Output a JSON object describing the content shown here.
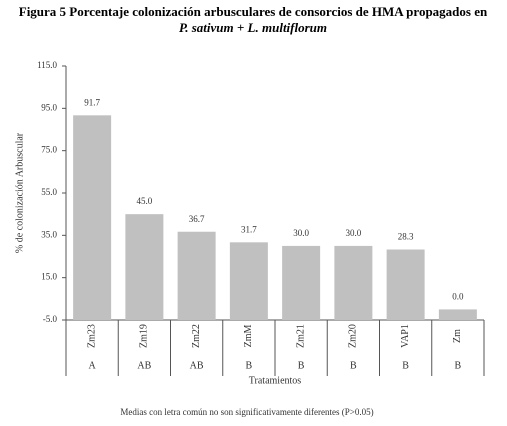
{
  "chart_data": {
    "type": "bar",
    "title": "Figura 5 Porcentaje colonización arbusculares de consorcios de HMA propagados en",
    "subtitle": "P. sativum + L. multiflorum",
    "y_label": "% de colonización Arbuscular",
    "x_label": "Tratamientos",
    "note": "Medias con letra común no son significativamente diferentes (P>0.05)",
    "categories": [
      "Zm23",
      "Zm19",
      "Zm22",
      "ZmM",
      "Zm21",
      "Zm20",
      "VAP1",
      "Zm"
    ],
    "letters": [
      "A",
      "AB",
      "AB",
      "B",
      "B",
      "B",
      "B",
      "B"
    ],
    "values": [
      91.7,
      45.0,
      36.7,
      31.7,
      30.0,
      30.0,
      28.3,
      0.0
    ],
    "value_labels": [
      "91.7",
      "45.0",
      "36.7",
      "31.7",
      "30.0",
      "30.0",
      "28.3",
      "0.0"
    ],
    "color": "#c0c0c0",
    "ylim": [
      -5,
      115
    ],
    "yticks": [
      {
        "value": -5,
        "label": "-5.0"
      },
      {
        "value": 15,
        "label": "15.0"
      },
      {
        "value": 35,
        "label": "35.0"
      },
      {
        "value": 55,
        "label": "55.0"
      },
      {
        "value": 75,
        "label": "75.0"
      },
      {
        "value": 95,
        "label": "95.0"
      },
      {
        "value": 115,
        "label": "115.0"
      }
    ]
  }
}
